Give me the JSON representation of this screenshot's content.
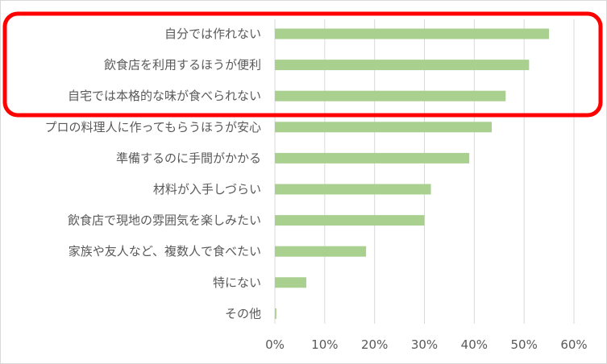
{
  "chart_data": {
    "type": "bar",
    "orientation": "horizontal",
    "categories": [
      "自分では作れない",
      "飲食店を利用するほうが便利",
      "自宅では本格的な味が食べられない",
      "プロの料理人に作ってもらうほうが安心",
      "準備するのに手間がかかる",
      "材料が入手しづらい",
      "飲食店で現地の雰囲気を楽しみたい",
      "家族や友人など、複数人で食べたい",
      "特にない",
      "その他"
    ],
    "values": [
      0.55,
      0.51,
      0.463,
      0.435,
      0.39,
      0.313,
      0.3,
      0.183,
      0.063,
      0.003
    ],
    "x_ticks": [
      "0%",
      "10%",
      "20%",
      "30%",
      "40%",
      "50%",
      "60%"
    ],
    "xlim": [
      0,
      0.6
    ],
    "grid": true,
    "bar_color": "#a9d08e",
    "grid_color": "#d9d9d9",
    "highlight": {
      "color": "#ff0000",
      "covers_first_n_categories": 3
    }
  }
}
